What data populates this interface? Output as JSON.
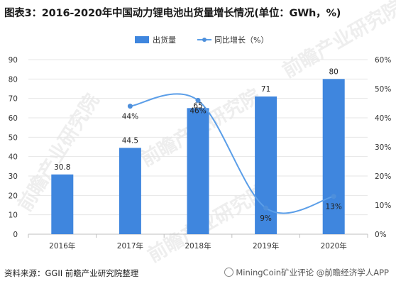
{
  "title": "图表3：2016-2020年中国动力锂电池出货量增长情况(单位：GWh，%)",
  "source": "资料来源：GGII 前瞻产业研究院整理",
  "watermark": "前瞻产业研究院",
  "brand": "MiningCoin矿业评论 @前瞻经济学人APP",
  "colors": {
    "bar": "#3f86de",
    "line": "#5b9ee8",
    "line_point": "#4e8fdb",
    "grid": "#e6e6e6"
  },
  "chart_data": {
    "type": "bar",
    "categories": [
      "2016年",
      "2017年",
      "2018年",
      "2019年",
      "2020年"
    ],
    "series": [
      {
        "name": "出货量",
        "type": "bar",
        "axis": "left",
        "values": [
          30.8,
          44.5,
          65,
          71,
          80
        ],
        "labels": [
          "30.8",
          "44.5",
          "65",
          "71",
          "80"
        ]
      },
      {
        "name": "同比增长（%）",
        "type": "line",
        "axis": "right",
        "values": [
          null,
          44,
          46,
          9,
          13
        ],
        "labels": [
          "",
          "44%",
          "46%",
          "9%",
          "13%"
        ]
      }
    ],
    "y_left": {
      "min": 0,
      "max": 90,
      "ticks": [
        "0",
        "10",
        "20",
        "30",
        "40",
        "50",
        "60",
        "70",
        "80",
        "90"
      ]
    },
    "y_right": {
      "min": 0,
      "max": 60,
      "ticks": [
        "0%",
        "10%",
        "20%",
        "30%",
        "40%",
        "50%",
        "60%"
      ]
    },
    "legend": "top-center",
    "grid": true
  }
}
